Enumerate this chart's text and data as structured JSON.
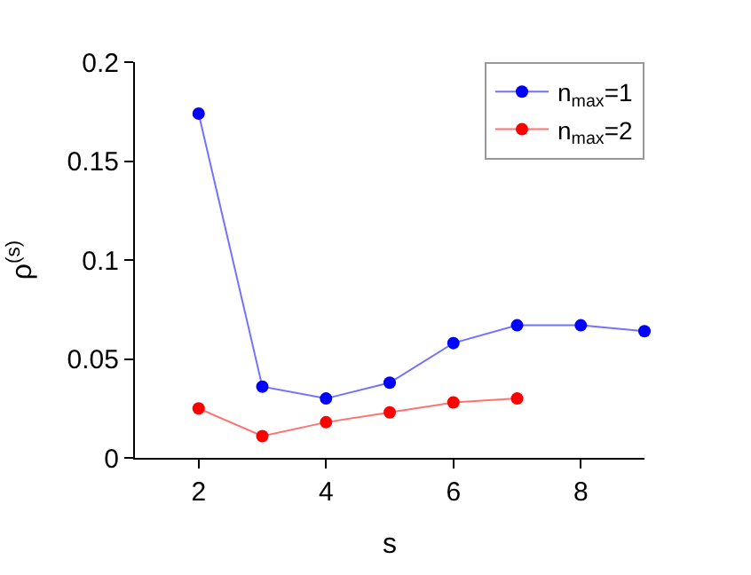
{
  "chart_data": {
    "type": "line",
    "xlabel": "s",
    "ylabel": "ρ$^{(s)}$",
    "xlim": [
      1,
      9
    ],
    "xticks": [
      2,
      4,
      6,
      8
    ],
    "ylim": [
      0,
      0.2
    ],
    "yticks": [
      0,
      0.05,
      0.1,
      0.15,
      0.2
    ],
    "legend": "top right",
    "marker": "circle",
    "line_style": "solid",
    "series": [
      {
        "name": "n$_{max}$=1",
        "color": "#0000ff",
        "x": [
          2,
          3,
          4,
          5,
          6,
          7,
          8,
          9
        ],
        "values": [
          0.174,
          0.036,
          0.03,
          0.038,
          0.058,
          0.067,
          0.067,
          0.064
        ]
      },
      {
        "name": "n$_{max}$=2",
        "color": "#ff0000",
        "x": [
          2,
          3,
          4,
          5,
          6,
          7
        ],
        "values": [
          0.025,
          0.011,
          0.018,
          0.023,
          0.028,
          0.03
        ]
      }
    ]
  }
}
